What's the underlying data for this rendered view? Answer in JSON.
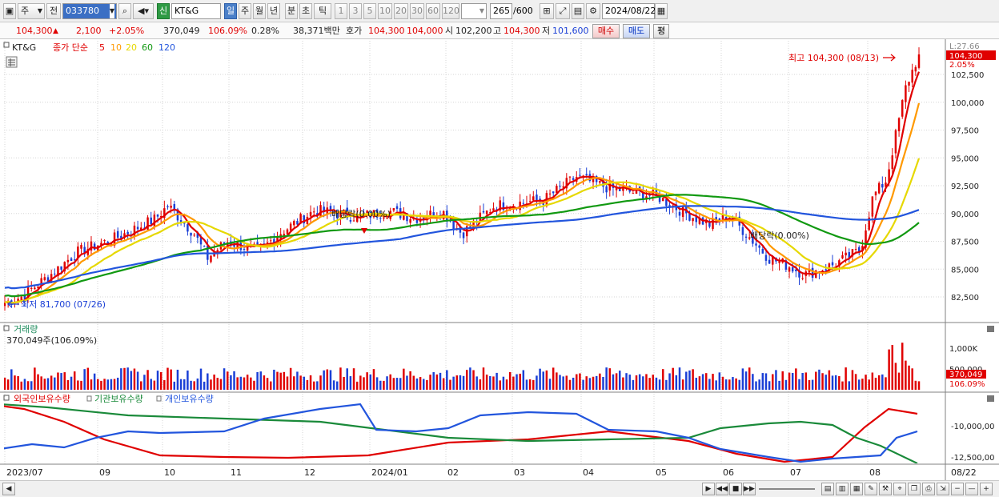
{
  "toolbar": {
    "period_unit": "주",
    "prev_label": "전",
    "code": "033780",
    "credit_badge": "신",
    "stock_name": "KT&G",
    "periods": [
      "일",
      "주",
      "월",
      "년",
      "분",
      "초",
      "틱"
    ],
    "active_period": "일",
    "minute_options": [
      "1",
      "3",
      "5",
      "10",
      "20",
      "30",
      "60",
      "120"
    ],
    "count_value": "265",
    "count_total": "/600",
    "date": "2024/08/22"
  },
  "quote": {
    "price": "104,300",
    "change_arrow": "▲",
    "change": "2,100",
    "change_pct": "+2.05%",
    "volume": "370,049",
    "volume_ratio": "106.09%",
    "turnover": "0.28%",
    "amount": "38,371백만",
    "hoga_label": "호가",
    "ask": "104,300",
    "bid": "104,000",
    "open_label": "시",
    "open": "102,200",
    "high_label": "고",
    "high": "104,300",
    "low_label": "저",
    "low": "101,600",
    "buy_label": "매수",
    "sell_label": "매도",
    "avg_label": "평"
  },
  "price_panel": {
    "legend_name": "KT&G",
    "legend_title": "종가 단순",
    "ma_labels": [
      "5",
      "10",
      "20",
      "60",
      "120"
    ],
    "ma_colors": [
      "#e00000",
      "#ff9900",
      "#e6d800",
      "#119911",
      "#2255dd"
    ],
    "y_ticks": [
      "102,500",
      "100,000",
      "97,500",
      "95,000",
      "92,500",
      "90,000",
      "87,500",
      "85,000",
      "82,500"
    ],
    "corner_label": "L:27.66",
    "last_price_tag": "104,300",
    "last_pct_tag": "2.05%",
    "max_note": "최고 104,300 (08/13)",
    "min_note": "최저 81,700 (07/26)",
    "dividend_notes": [
      "배당락(0.00%)",
      "배당락(0.00%)"
    ]
  },
  "volume_panel": {
    "title": "거래량",
    "subtitle": "370,049주(106.09%)",
    "y_ticks": [
      "1,000K",
      "500,000"
    ],
    "last_tag": "370,049",
    "last_pct_tag": "106.09%"
  },
  "holding_panel": {
    "legend": [
      "외국인보유수량",
      "기관보유수량",
      "개인보유수량"
    ],
    "colors": [
      "#e00000",
      "#1a8a3a",
      "#2255dd"
    ],
    "y_ticks": [
      "-10,000,00",
      "-12,500,00"
    ]
  },
  "x_axis": {
    "labels": [
      "2023/07",
      "09",
      "10",
      "11",
      "12",
      "2024/01",
      "02",
      "03",
      "04",
      "05",
      "06",
      "07",
      "08"
    ],
    "right_label": "08/22"
  },
  "icons": {
    "chart-type": "chart-icon",
    "search": "search-icon",
    "sound": "speaker-icon",
    "settings": "gear-icon",
    "calendar": "calendar-icon"
  }
}
